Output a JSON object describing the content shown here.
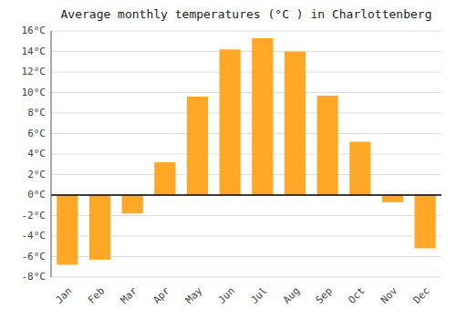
{
  "chart_data": {
    "type": "bar",
    "title": "Average monthly temperatures (°C ) in Charlottenberg",
    "categories": [
      "Jan",
      "Feb",
      "Mar",
      "Apr",
      "May",
      "Jun",
      "Jul",
      "Aug",
      "Sep",
      "Oct",
      "Nov",
      "Dec"
    ],
    "values": [
      -6.8,
      -6.3,
      -1.8,
      3.2,
      9.6,
      14.2,
      15.3,
      14.0,
      9.7,
      5.2,
      -0.7,
      -5.2
    ],
    "color": "#FFA726",
    "ylim": [
      -8,
      16
    ],
    "yticks": [
      {
        "value": -8,
        "label": "-8°C"
      },
      {
        "value": -6,
        "label": "-6°C"
      },
      {
        "value": -4,
        "label": "-4°C"
      },
      {
        "value": -2,
        "label": "-2°C"
      },
      {
        "value": 0,
        "label": "0°C"
      },
      {
        "value": 2,
        "label": "2°C"
      },
      {
        "value": 4,
        "label": "4°C"
      },
      {
        "value": 6,
        "label": "6°C"
      },
      {
        "value": 8,
        "label": "8°C"
      },
      {
        "value": 10,
        "label": "10°C"
      },
      {
        "value": 12,
        "label": "12°C"
      },
      {
        "value": 14,
        "label": "14°C"
      },
      {
        "value": 16,
        "label": "16°C"
      }
    ],
    "grid": true
  }
}
